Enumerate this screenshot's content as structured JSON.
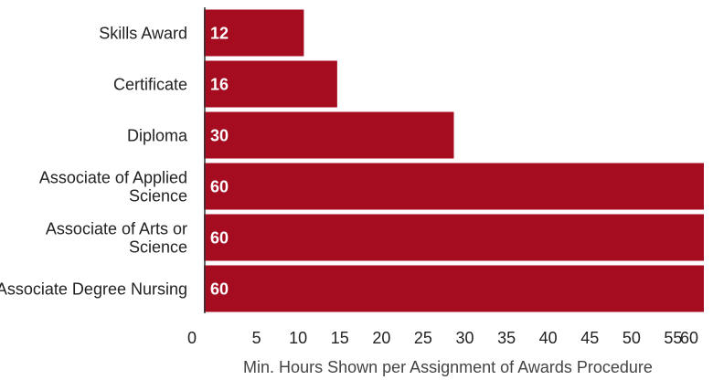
{
  "chart_data": {
    "type": "bar",
    "orientation": "horizontal",
    "categories": [
      "Skills Award",
      "Certificate",
      "Diploma",
      "Associate of Applied Science",
      "Associate of Arts or Science",
      "Associate Degree Nursing"
    ],
    "category_lines": [
      [
        "Skills Award"
      ],
      [
        "Certificate"
      ],
      [
        "Diploma"
      ],
      [
        "Associate of Applied",
        "Science"
      ],
      [
        "Associate of Arts or",
        "Science"
      ],
      [
        "Associate Degree Nursing"
      ]
    ],
    "values": [
      12,
      16,
      30,
      60,
      60,
      60
    ],
    "data_labels": [
      "12",
      "16",
      "30",
      "60",
      "60",
      "60"
    ],
    "xlabel": "Min. Hours Shown per Assignment of Awards Procedure",
    "ylabel": "",
    "title": "",
    "xlim": [
      0,
      60
    ],
    "x_ticks": [
      0,
      5,
      10,
      15,
      20,
      25,
      30,
      35,
      40,
      45,
      50,
      55,
      60
    ],
    "x_tick_labels": [
      "0",
      "5",
      "10",
      "15",
      "20",
      "25",
      "30",
      "35",
      "40",
      "45",
      "50",
      "55",
      "60"
    ],
    "grid": false,
    "legend": "none",
    "bar_color": "#a50c1f",
    "text_color": "#222222"
  }
}
